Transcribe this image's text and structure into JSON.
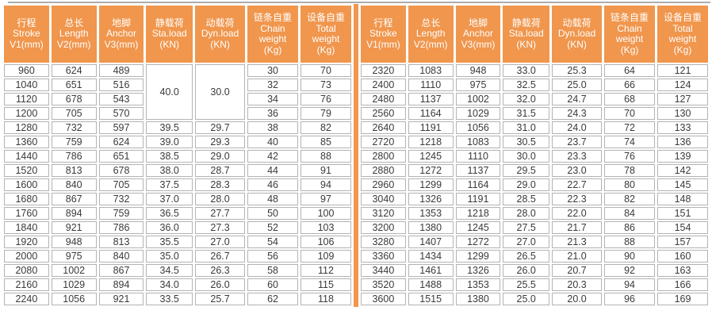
{
  "colors": {
    "header_bg": "#f0964d",
    "divider": "#f0964d",
    "cell_border": "#b3b3b3",
    "cell_text": "#3a3a3a",
    "header_text": "#ffffff",
    "top_rule": "#acacac"
  },
  "table": {
    "columns": [
      {
        "lines": [
          "行程",
          "Stroke",
          "V1(mm)"
        ]
      },
      {
        "lines": [
          "总长",
          "Length",
          "V2(mm)"
        ]
      },
      {
        "lines": [
          "地脚",
          "Anchor",
          "V3(mm)"
        ]
      },
      {
        "lines": [
          "静载荷",
          "Sta.load",
          "(KN)"
        ]
      },
      {
        "lines": [
          "动载荷",
          "Dyn.load",
          "(KN)"
        ]
      },
      {
        "lines": [
          "链条自重",
          "Chain",
          "weight",
          "(Kg)"
        ]
      },
      {
        "lines": [
          "设备自重",
          "Total",
          "weight",
          "(Kg)"
        ]
      }
    ],
    "left": {
      "merges": [
        {
          "row": 0,
          "col": 3,
          "rowspan": 4
        },
        {
          "row": 0,
          "col": 4,
          "rowspan": 4
        }
      ],
      "rows": [
        [
          "960",
          "624",
          "489",
          "40.0",
          "30.0",
          "30",
          "70"
        ],
        [
          "1040",
          "651",
          "516",
          "",
          "",
          "32",
          "73"
        ],
        [
          "1120",
          "678",
          "543",
          "",
          "",
          "34",
          "76"
        ],
        [
          "1200",
          "705",
          "570",
          "",
          "",
          "36",
          "79"
        ],
        [
          "1280",
          "732",
          "597",
          "39.5",
          "29.7",
          "38",
          "82"
        ],
        [
          "1360",
          "759",
          "624",
          "39.0",
          "29.3",
          "40",
          "85"
        ],
        [
          "1440",
          "786",
          "651",
          "38.5",
          "29.0",
          "42",
          "88"
        ],
        [
          "1520",
          "813",
          "678",
          "38.0",
          "28.7",
          "44",
          "91"
        ],
        [
          "1600",
          "840",
          "705",
          "37.5",
          "28.3",
          "46",
          "94"
        ],
        [
          "1680",
          "867",
          "732",
          "37.0",
          "28.0",
          "48",
          "97"
        ],
        [
          "1760",
          "894",
          "759",
          "36.5",
          "27.7",
          "50",
          "100"
        ],
        [
          "1840",
          "921",
          "786",
          "36.0",
          "27.3",
          "52",
          "103"
        ],
        [
          "1920",
          "948",
          "813",
          "35.5",
          "27.0",
          "54",
          "106"
        ],
        [
          "2000",
          "975",
          "840",
          "35.0",
          "26.7",
          "56",
          "109"
        ],
        [
          "2080",
          "1002",
          "867",
          "34.5",
          "26.3",
          "58",
          "112"
        ],
        [
          "2160",
          "1029",
          "894",
          "34.0",
          "26.0",
          "60",
          "115"
        ],
        [
          "2240",
          "1056",
          "921",
          "33.5",
          "25.7",
          "62",
          "118"
        ]
      ]
    },
    "right": {
      "merges": [],
      "rows": [
        [
          "2320",
          "1083",
          "948",
          "33.0",
          "25.3",
          "64",
          "121"
        ],
        [
          "2400",
          "1110",
          "975",
          "32.5",
          "25.0",
          "66",
          "124"
        ],
        [
          "2480",
          "1137",
          "1002",
          "32.0",
          "24.7",
          "68",
          "127"
        ],
        [
          "2560",
          "1164",
          "1029",
          "31.5",
          "24.3",
          "70",
          "130"
        ],
        [
          "2640",
          "1191",
          "1056",
          "31.0",
          "24.0",
          "72",
          "133"
        ],
        [
          "2720",
          "1218",
          "1083",
          "30.5",
          "23.7",
          "74",
          "136"
        ],
        [
          "2800",
          "1245",
          "1110",
          "30.0",
          "23.3",
          "76",
          "139"
        ],
        [
          "2880",
          "1272",
          "1137",
          "29.5",
          "23.0",
          "78",
          "142"
        ],
        [
          "2960",
          "1299",
          "1164",
          "29.0",
          "22.7",
          "80",
          "145"
        ],
        [
          "3040",
          "1326",
          "1191",
          "28.5",
          "22.3",
          "82",
          "148"
        ],
        [
          "3120",
          "1353",
          "1218",
          "28.0",
          "22.0",
          "84",
          "151"
        ],
        [
          "3200",
          "1380",
          "1245",
          "27.5",
          "21.7",
          "86",
          "154"
        ],
        [
          "3280",
          "1407",
          "1272",
          "27.0",
          "21.3",
          "88",
          "157"
        ],
        [
          "3360",
          "1434",
          "1299",
          "26.5",
          "21.0",
          "90",
          "160"
        ],
        [
          "3440",
          "1461",
          "1326",
          "26.0",
          "20.7",
          "92",
          "163"
        ],
        [
          "3520",
          "1488",
          "1353",
          "25.5",
          "20.3",
          "94",
          "166"
        ],
        [
          "3600",
          "1515",
          "1380",
          "25.0",
          "20.0",
          "96",
          "169"
        ]
      ]
    }
  }
}
